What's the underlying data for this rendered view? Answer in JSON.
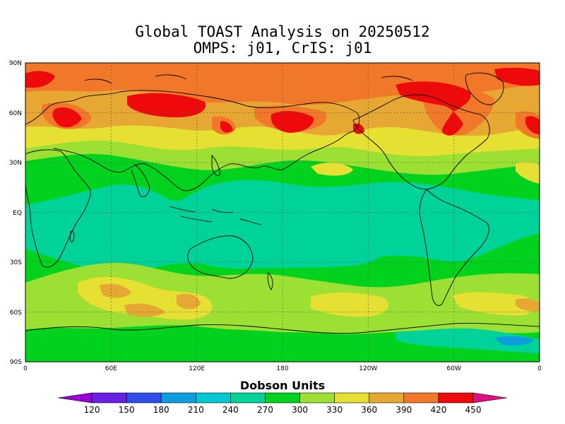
{
  "title": {
    "line1": "Global TOAST Analysis on 20250512",
    "line2": "OMPS: j01, CrIS: j01"
  },
  "axes": {
    "lat_labels": [
      "90N",
      "60N",
      "30N",
      "EQ",
      "30S",
      "60S",
      "90S"
    ],
    "lon_labels": [
      "0",
      "60E",
      "120E",
      "180",
      "120W",
      "60W",
      "0"
    ],
    "grid": "dotted"
  },
  "colorbar": {
    "title": "Dobson Units",
    "tick_labels": [
      "120",
      "150",
      "180",
      "210",
      "240",
      "270",
      "300",
      "330",
      "360",
      "390",
      "420",
      "450"
    ],
    "colors": [
      "#9b00d8",
      "#6a1fe6",
      "#2d4de8",
      "#0d9ee0",
      "#00c8d2",
      "#00d39a",
      "#00d21e",
      "#9be033",
      "#e6e033",
      "#e6a833",
      "#f07828",
      "#ee0a0a",
      "#dd1280"
    ],
    "below_color": "#9b00d8",
    "above_color": "#dd1280"
  },
  "palette": {
    "background": "#ffffff",
    "frame": "#000000",
    "coastline": "#000000"
  }
}
